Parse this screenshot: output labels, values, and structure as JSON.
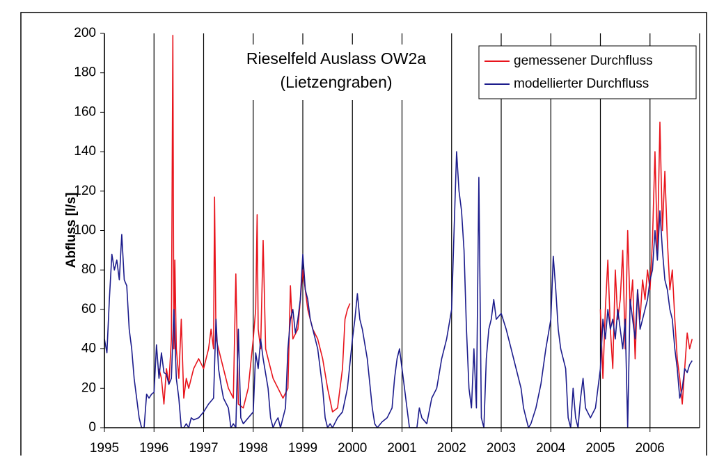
{
  "chart_data": {
    "type": "line",
    "title": "Rieselfeld Auslass OW2a",
    "subtitle": "(Lietzengraben)",
    "y_label": "Abfluss [l/s]",
    "xlim": [
      1995,
      2007
    ],
    "xticks": [
      1995,
      1996,
      1997,
      1998,
      1999,
      2000,
      2001,
      2002,
      2003,
      2004,
      2005,
      2006
    ],
    "ylim": [
      0,
      200
    ],
    "yticks": [
      0,
      20,
      40,
      60,
      80,
      100,
      120,
      140,
      160,
      180,
      200
    ],
    "grid": "x",
    "legend": "upper right",
    "series": [
      {
        "name": "gemessener Durchfluss",
        "color": "#e8141c",
        "x": [
          1996.1,
          1996.15,
          1996.2,
          1996.25,
          1996.3,
          1996.35,
          1996.38,
          1996.4,
          1996.42,
          1996.45,
          1996.5,
          1996.55,
          1996.6,
          1996.65,
          1996.7,
          1996.8,
          1996.9,
          1997.0,
          1997.1,
          1997.15,
          1997.2,
          1997.22,
          1997.25,
          1997.3,
          1997.4,
          1997.5,
          1997.6,
          1997.65,
          1997.7,
          1997.8,
          1997.9,
          1998.0,
          1998.05,
          1998.08,
          1998.1,
          1998.15,
          1998.2,
          1998.25,
          1998.3,
          1998.4,
          1998.5,
          1998.6,
          1998.7,
          1998.75,
          1998.8,
          1998.9,
          1999.0,
          1999.1,
          1999.2,
          1999.3,
          1999.4,
          1999.5,
          1999.6,
          1999.7,
          1999.8,
          1999.85,
          1999.9,
          1999.95,
          2000.5,
          2005.0,
          2005.05,
          2005.1,
          2005.15,
          2005.2,
          2005.25,
          2005.3,
          2005.35,
          2005.4,
          2005.45,
          2005.5,
          2005.55,
          2005.6,
          2005.65,
          2005.7,
          2005.75,
          2005.8,
          2005.85,
          2005.9,
          2005.95,
          2006.0,
          2006.05,
          2006.1,
          2006.15,
          2006.2,
          2006.25,
          2006.3,
          2006.35,
          2006.4,
          2006.45,
          2006.5,
          2006.55,
          2006.6,
          2006.65,
          2006.7,
          2006.75,
          2006.8,
          2006.85
        ],
        "values": [
          30,
          25,
          12,
          30,
          22,
          45,
          199,
          40,
          85,
          40,
          25,
          55,
          15,
          25,
          20,
          30,
          35,
          30,
          40,
          50,
          40,
          117,
          45,
          40,
          30,
          20,
          15,
          78,
          12,
          10,
          20,
          45,
          60,
          108,
          50,
          40,
          95,
          40,
          35,
          25,
          20,
          15,
          20,
          72,
          45,
          50,
          80,
          60,
          50,
          45,
          35,
          20,
          8,
          10,
          30,
          55,
          60,
          63,
          null,
          60,
          25,
          60,
          85,
          50,
          30,
          80,
          55,
          65,
          90,
          40,
          100,
          60,
          75,
          35,
          70,
          55,
          75,
          65,
          80,
          70,
          95,
          140,
          90,
          155,
          100,
          130,
          95,
          70,
          80,
          55,
          35,
          25,
          12,
          30,
          48,
          40,
          45
        ]
      },
      {
        "name": "modellierter Durchfluss",
        "color": "#1c1c8c",
        "x": [
          1995.0,
          1995.05,
          1995.1,
          1995.15,
          1995.2,
          1995.25,
          1995.3,
          1995.35,
          1995.4,
          1995.45,
          1995.5,
          1995.55,
          1995.6,
          1995.65,
          1995.7,
          1995.75,
          1995.8,
          1995.85,
          1995.9,
          1995.95,
          1996.0,
          1996.05,
          1996.1,
          1996.15,
          1996.2,
          1996.25,
          1996.3,
          1996.35,
          1996.4,
          1996.45,
          1996.5,
          1996.55,
          1996.6,
          1996.65,
          1996.7,
          1996.75,
          1996.8,
          1996.9,
          1997.0,
          1997.1,
          1997.2,
          1997.25,
          1997.3,
          1997.35,
          1997.4,
          1997.5,
          1997.55,
          1997.6,
          1997.65,
          1997.7,
          1997.75,
          1997.8,
          1997.9,
          1998.0,
          1998.05,
          1998.1,
          1998.15,
          1998.2,
          1998.3,
          1998.35,
          1998.4,
          1998.45,
          1998.5,
          1998.55,
          1998.6,
          1998.65,
          1998.7,
          1998.75,
          1998.8,
          1998.85,
          1998.9,
          1998.95,
          1999.0,
          1999.05,
          1999.1,
          1999.15,
          1999.2,
          1999.3,
          1999.4,
          1999.45,
          1999.5,
          1999.55,
          1999.6,
          1999.7,
          1999.8,
          1999.9,
          2000.0,
          2000.05,
          2000.1,
          2000.15,
          2000.2,
          2000.3,
          2000.4,
          2000.45,
          2000.5,
          2000.6,
          2000.7,
          2000.8,
          2000.85,
          2000.9,
          2000.95,
          2001.0,
          2001.05,
          2001.1,
          2001.15,
          2001.3,
          2001.35,
          2001.4,
          2001.5,
          2001.6,
          2001.7,
          2001.8,
          2001.9,
          2002.0,
          2002.05,
          2002.1,
          2002.15,
          2002.2,
          2002.25,
          2002.3,
          2002.35,
          2002.4,
          2002.45,
          2002.5,
          2002.55,
          2002.6,
          2002.65,
          2002.7,
          2002.75,
          2002.8,
          2002.85,
          2002.9,
          2003.0,
          2003.1,
          2003.2,
          2003.3,
          2003.4,
          2003.45,
          2003.5,
          2003.55,
          2003.6,
          2003.7,
          2003.8,
          2003.9,
          2004.0,
          2004.05,
          2004.1,
          2004.15,
          2004.2,
          2004.3,
          2004.35,
          2004.4,
          2004.45,
          2004.5,
          2004.55,
          2004.6,
          2004.65,
          2004.7,
          2004.8,
          2004.9,
          2005.0,
          2005.05,
          2005.1,
          2005.15,
          2005.2,
          2005.25,
          2005.3,
          2005.35,
          2005.4,
          2005.45,
          2005.5,
          2005.55,
          2005.6,
          2005.65,
          2005.7,
          2005.75,
          2005.8,
          2005.85,
          2005.9,
          2005.95,
          2006.0,
          2006.05,
          2006.1,
          2006.15,
          2006.2,
          2006.25,
          2006.3,
          2006.35,
          2006.4,
          2006.45,
          2006.5,
          2006.55,
          2006.6,
          2006.65,
          2006.7,
          2006.75,
          2006.8,
          2006.85
        ],
        "values": [
          45,
          38,
          65,
          88,
          80,
          85,
          75,
          98,
          75,
          72,
          50,
          40,
          25,
          15,
          5,
          0,
          0,
          17,
          15,
          17,
          18,
          42,
          25,
          38,
          28,
          27,
          22,
          25,
          60,
          25,
          15,
          0,
          0,
          2,
          0,
          5,
          4,
          5,
          8,
          12,
          15,
          55,
          30,
          22,
          15,
          10,
          0,
          2,
          0,
          50,
          5,
          2,
          5,
          8,
          38,
          30,
          45,
          35,
          20,
          5,
          0,
          3,
          5,
          0,
          5,
          10,
          40,
          55,
          60,
          48,
          55,
          65,
          88,
          70,
          65,
          55,
          50,
          40,
          20,
          5,
          0,
          2,
          0,
          5,
          8,
          20,
          45,
          55,
          68,
          55,
          50,
          35,
          10,
          2,
          0,
          3,
          5,
          10,
          25,
          35,
          40,
          30,
          20,
          10,
          0,
          0,
          10,
          5,
          2,
          15,
          20,
          35,
          45,
          60,
          100,
          140,
          120,
          110,
          90,
          50,
          20,
          10,
          40,
          10,
          127,
          5,
          0,
          35,
          50,
          55,
          65,
          55,
          58,
          50,
          40,
          30,
          20,
          10,
          5,
          0,
          2,
          10,
          22,
          40,
          55,
          87,
          70,
          50,
          40,
          30,
          5,
          0,
          20,
          5,
          0,
          15,
          25,
          10,
          5,
          10,
          30,
          55,
          45,
          60,
          50,
          55,
          45,
          60,
          50,
          40,
          55,
          0,
          65,
          55,
          45,
          70,
          50,
          55,
          60,
          65,
          75,
          80,
          100,
          85,
          110,
          90,
          75,
          70,
          60,
          55,
          40,
          30,
          15,
          20,
          30,
          28,
          32,
          34
        ]
      }
    ]
  }
}
